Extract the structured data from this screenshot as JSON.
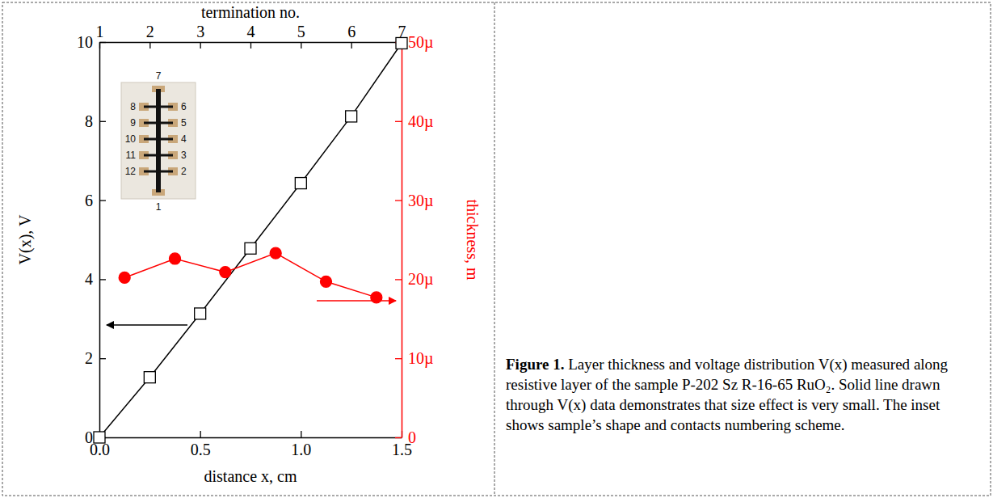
{
  "chart_data": {
    "type": "line",
    "x_label": "distance x, cm",
    "x2_label": "termination no.",
    "y_label": "V(x), V",
    "y2_label": "thickness, m",
    "xlim": [
      0,
      1.5
    ],
    "xticks": [
      {
        "value": 0,
        "label": "0.0"
      },
      {
        "value": 0.5,
        "label": "0.5"
      },
      {
        "value": 1,
        "label": "1.0"
      },
      {
        "value": 1.5,
        "label": "1.5"
      }
    ],
    "x2lim": [
      1,
      7
    ],
    "x2ticks": [
      1,
      2,
      3,
      4,
      5,
      6,
      7
    ],
    "ylim": [
      0,
      10
    ],
    "yticks": [
      0,
      2,
      4,
      6,
      8,
      10
    ],
    "y2lim": [
      0,
      50
    ],
    "y2ticks": [
      0,
      {
        "value": 10,
        "label": "10µ"
      },
      {
        "value": 20,
        "label": "20µ"
      },
      {
        "value": 30,
        "label": "30µ"
      },
      {
        "value": 40,
        "label": "40µ"
      },
      {
        "value": 50,
        "label": "50µ"
      }
    ],
    "grid": false,
    "series": [
      {
        "color": "#000000",
        "marker": "open-square",
        "line_style": "solid",
        "x": [
          0,
          0.25,
          0.5,
          0.75,
          1.0,
          1.25,
          1.5
        ],
        "values": [
          0,
          1.52,
          3.13,
          4.78,
          6.43,
          8.12,
          9.97
        ]
      },
      {
        "axis": "y2",
        "color": "#ff0000",
        "marker": "circle",
        "line_style": "solid",
        "x": [
          0.125,
          0.375,
          0.625,
          0.875,
          1.125,
          1.375
        ],
        "values": [
          20.2,
          22.6,
          20.9,
          23.3,
          19.7,
          17.7
        ]
      }
    ],
    "inset": {
      "top": "7",
      "bottom": "1",
      "left": [
        "8",
        "9",
        "10",
        "11",
        "12"
      ],
      "right": [
        "6",
        "5",
        "4",
        "3",
        "2"
      ]
    }
  },
  "caption_label": "Figure 1.",
  "caption": "Layer thickness and voltage distribution V(x) measured along resistive layer of the sample P-202 Sz R-16-65 RuO₂. Solid line drawn through V(x) data demonstrates that size effect is very small. The inset shows sample’s shape and contacts numbering scheme."
}
